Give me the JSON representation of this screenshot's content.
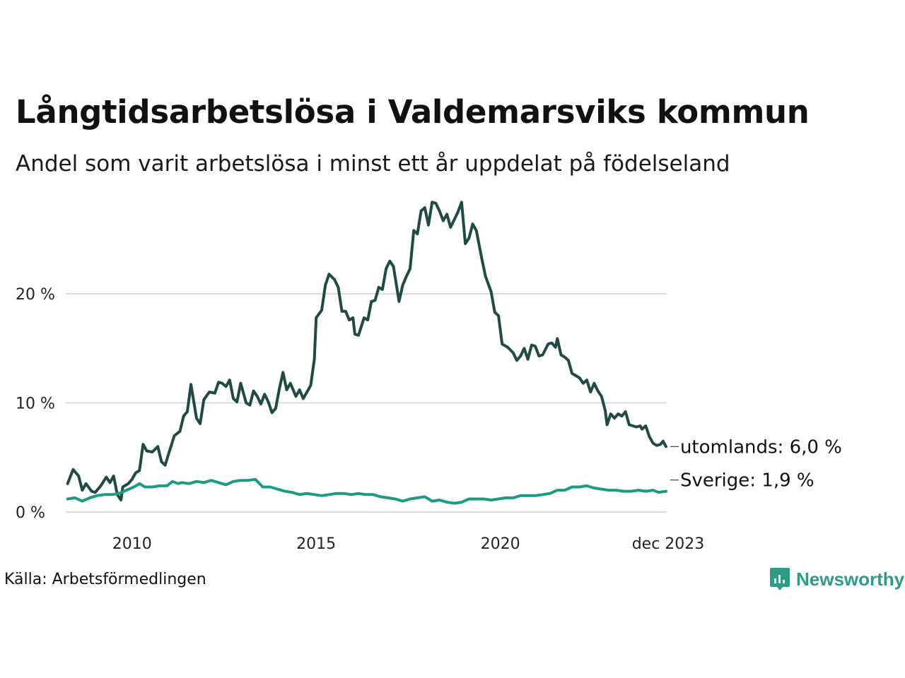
{
  "title": "Långtidsarbetslösa i Valdemarsviks kommun",
  "subtitle": "Andel som varit arbetslösa i minst ett år uppdelat på födelseland",
  "source": "Källa: Arbetsförmedlingen",
  "brand": "Newsworthy",
  "colors": {
    "utomlands": "#1f4b44",
    "sverige": "#1b9a86",
    "grid": "#dcdcdc",
    "brand": "#2e9b86"
  },
  "chart_data": {
    "type": "line",
    "title": "Långtidsarbetslösa i Valdemarsviks kommun",
    "xlabel": "",
    "ylabel": "",
    "ylim": [
      0,
      29
    ],
    "xlim": [
      2008.2,
      2023.95
    ],
    "y_ticks": [
      {
        "value": 0,
        "label": "0 %"
      },
      {
        "value": 10,
        "label": "10 %"
      },
      {
        "value": 20,
        "label": "20 %"
      }
    ],
    "x_ticks": [
      {
        "value": 2010,
        "label": "2010"
      },
      {
        "value": 2015,
        "label": "2015"
      },
      {
        "value": 2020,
        "label": "2020"
      },
      {
        "value": 2023.92,
        "label": "dec 2023"
      }
    ],
    "series": [
      {
        "name": "utomlands",
        "label": "utomlands: 6,0 %",
        "last_value": 6.0,
        "points": [
          [
            2008.25,
            2.6
          ],
          [
            2008.4,
            3.9
          ],
          [
            2008.55,
            3.3
          ],
          [
            2008.65,
            2.0
          ],
          [
            2008.75,
            2.6
          ],
          [
            2008.9,
            1.9
          ],
          [
            2009.0,
            1.8
          ],
          [
            2009.15,
            2.4
          ],
          [
            2009.3,
            3.2
          ],
          [
            2009.4,
            2.7
          ],
          [
            2009.5,
            3.3
          ],
          [
            2009.6,
            1.6
          ],
          [
            2009.7,
            1.1
          ],
          [
            2009.75,
            2.3
          ],
          [
            2009.9,
            2.6
          ],
          [
            2010.0,
            3.0
          ],
          [
            2010.1,
            3.6
          ],
          [
            2010.2,
            3.8
          ],
          [
            2010.3,
            6.2
          ],
          [
            2010.4,
            5.6
          ],
          [
            2010.55,
            5.5
          ],
          [
            2010.7,
            6.0
          ],
          [
            2010.8,
            4.6
          ],
          [
            2010.9,
            4.3
          ],
          [
            2011.0,
            5.4
          ],
          [
            2011.15,
            7.0
          ],
          [
            2011.3,
            7.4
          ],
          [
            2011.4,
            8.8
          ],
          [
            2011.5,
            9.2
          ],
          [
            2011.6,
            11.7
          ],
          [
            2011.75,
            8.6
          ],
          [
            2011.85,
            8.1
          ],
          [
            2011.95,
            10.3
          ],
          [
            2012.1,
            11.0
          ],
          [
            2012.25,
            10.9
          ],
          [
            2012.35,
            11.9
          ],
          [
            2012.45,
            11.8
          ],
          [
            2012.55,
            11.5
          ],
          [
            2012.65,
            12.1
          ],
          [
            2012.75,
            10.4
          ],
          [
            2012.85,
            10.1
          ],
          [
            2012.95,
            11.8
          ],
          [
            2013.1,
            10.0
          ],
          [
            2013.2,
            9.8
          ],
          [
            2013.3,
            11.1
          ],
          [
            2013.4,
            10.6
          ],
          [
            2013.5,
            9.9
          ],
          [
            2013.6,
            10.8
          ],
          [
            2013.7,
            10.1
          ],
          [
            2013.8,
            9.1
          ],
          [
            2013.9,
            9.5
          ],
          [
            2014.0,
            11.3
          ],
          [
            2014.1,
            12.8
          ],
          [
            2014.2,
            11.2
          ],
          [
            2014.3,
            11.8
          ],
          [
            2014.45,
            10.6
          ],
          [
            2014.55,
            11.2
          ],
          [
            2014.65,
            10.4
          ],
          [
            2014.75,
            11.0
          ],
          [
            2014.85,
            11.6
          ],
          [
            2014.95,
            14.0
          ],
          [
            2015.0,
            17.8
          ],
          [
            2015.15,
            18.5
          ],
          [
            2015.25,
            20.8
          ],
          [
            2015.35,
            21.8
          ],
          [
            2015.5,
            21.3
          ],
          [
            2015.6,
            20.6
          ],
          [
            2015.7,
            18.4
          ],
          [
            2015.8,
            18.4
          ],
          [
            2015.9,
            17.6
          ],
          [
            2016.0,
            17.8
          ],
          [
            2016.05,
            16.3
          ],
          [
            2016.15,
            16.2
          ],
          [
            2016.3,
            17.8
          ],
          [
            2016.4,
            17.6
          ],
          [
            2016.5,
            19.3
          ],
          [
            2016.6,
            19.4
          ],
          [
            2016.7,
            20.6
          ],
          [
            2016.8,
            20.4
          ],
          [
            2016.9,
            22.3
          ],
          [
            2017.0,
            23.0
          ],
          [
            2017.1,
            22.5
          ],
          [
            2017.25,
            19.3
          ],
          [
            2017.35,
            20.8
          ],
          [
            2017.45,
            21.6
          ],
          [
            2017.55,
            22.3
          ],
          [
            2017.65,
            25.8
          ],
          [
            2017.75,
            25.5
          ],
          [
            2017.85,
            27.6
          ],
          [
            2017.95,
            27.9
          ],
          [
            2018.05,
            26.3
          ],
          [
            2018.15,
            28.4
          ],
          [
            2018.25,
            28.3
          ],
          [
            2018.35,
            27.6
          ],
          [
            2018.45,
            26.7
          ],
          [
            2018.55,
            27.3
          ],
          [
            2018.65,
            26.1
          ],
          [
            2018.75,
            26.8
          ],
          [
            2018.85,
            27.5
          ],
          [
            2018.95,
            28.4
          ],
          [
            2019.05,
            24.6
          ],
          [
            2019.15,
            25.1
          ],
          [
            2019.25,
            26.4
          ],
          [
            2019.35,
            25.8
          ],
          [
            2019.5,
            23.2
          ],
          [
            2019.6,
            21.6
          ],
          [
            2019.75,
            20.2
          ],
          [
            2019.85,
            18.3
          ],
          [
            2019.95,
            18.0
          ],
          [
            2020.05,
            15.4
          ],
          [
            2020.2,
            15.1
          ],
          [
            2020.35,
            14.6
          ],
          [
            2020.45,
            13.9
          ],
          [
            2020.55,
            14.3
          ],
          [
            2020.65,
            15.0
          ],
          [
            2020.75,
            14.0
          ],
          [
            2020.85,
            15.3
          ],
          [
            2020.95,
            15.2
          ],
          [
            2021.05,
            14.3
          ],
          [
            2021.15,
            14.4
          ],
          [
            2021.3,
            15.4
          ],
          [
            2021.4,
            15.5
          ],
          [
            2021.5,
            15.1
          ],
          [
            2021.55,
            15.9
          ],
          [
            2021.65,
            14.4
          ],
          [
            2021.75,
            14.2
          ],
          [
            2021.85,
            13.9
          ],
          [
            2021.95,
            12.7
          ],
          [
            2022.05,
            12.5
          ],
          [
            2022.15,
            12.3
          ],
          [
            2022.25,
            11.8
          ],
          [
            2022.35,
            12.1
          ],
          [
            2022.45,
            11.0
          ],
          [
            2022.55,
            11.8
          ],
          [
            2022.65,
            11.1
          ],
          [
            2022.75,
            10.6
          ],
          [
            2022.85,
            9.3
          ],
          [
            2022.9,
            8.0
          ],
          [
            2023.0,
            9.0
          ],
          [
            2023.1,
            8.6
          ],
          [
            2023.2,
            9.0
          ],
          [
            2023.3,
            8.8
          ],
          [
            2023.4,
            9.2
          ],
          [
            2023.5,
            8.0
          ],
          [
            2023.6,
            7.9
          ],
          [
            2023.7,
            7.8
          ],
          [
            2023.8,
            7.9
          ],
          [
            2023.85,
            7.6
          ],
          [
            2023.95,
            7.9
          ],
          [
            2024.05,
            6.9
          ],
          [
            2024.15,
            6.3
          ],
          [
            2024.25,
            6.1
          ],
          [
            2024.35,
            6.2
          ],
          [
            2024.42,
            6.5
          ],
          [
            2024.5,
            6.0
          ]
        ]
      },
      {
        "name": "Sverige",
        "label": "Sverige: 1,9 %",
        "last_value": 1.9,
        "points": [
          [
            2008.25,
            1.2
          ],
          [
            2008.45,
            1.3
          ],
          [
            2008.65,
            1.0
          ],
          [
            2008.85,
            1.3
          ],
          [
            2009.05,
            1.5
          ],
          [
            2009.25,
            1.6
          ],
          [
            2009.45,
            1.6
          ],
          [
            2009.65,
            1.7
          ],
          [
            2009.85,
            2.0
          ],
          [
            2010.05,
            2.3
          ],
          [
            2010.2,
            2.6
          ],
          [
            2010.35,
            2.3
          ],
          [
            2010.55,
            2.3
          ],
          [
            2010.75,
            2.4
          ],
          [
            2010.95,
            2.4
          ],
          [
            2011.1,
            2.8
          ],
          [
            2011.25,
            2.6
          ],
          [
            2011.35,
            2.7
          ],
          [
            2011.55,
            2.6
          ],
          [
            2011.75,
            2.8
          ],
          [
            2011.95,
            2.7
          ],
          [
            2012.15,
            2.9
          ],
          [
            2012.35,
            2.7
          ],
          [
            2012.55,
            2.5
          ],
          [
            2012.75,
            2.8
          ],
          [
            2012.95,
            2.9
          ],
          [
            2013.15,
            2.9
          ],
          [
            2013.35,
            3.0
          ],
          [
            2013.55,
            2.3
          ],
          [
            2013.75,
            2.3
          ],
          [
            2013.95,
            2.1
          ],
          [
            2014.15,
            1.9
          ],
          [
            2014.35,
            1.8
          ],
          [
            2014.55,
            1.6
          ],
          [
            2014.75,
            1.7
          ],
          [
            2014.95,
            1.6
          ],
          [
            2015.15,
            1.5
          ],
          [
            2015.35,
            1.6
          ],
          [
            2015.55,
            1.7
          ],
          [
            2015.75,
            1.7
          ],
          [
            2015.95,
            1.6
          ],
          [
            2016.15,
            1.7
          ],
          [
            2016.35,
            1.6
          ],
          [
            2016.55,
            1.6
          ],
          [
            2016.75,
            1.4
          ],
          [
            2016.95,
            1.3
          ],
          [
            2017.15,
            1.2
          ],
          [
            2017.35,
            1.0
          ],
          [
            2017.55,
            1.2
          ],
          [
            2017.75,
            1.3
          ],
          [
            2017.95,
            1.4
          ],
          [
            2018.15,
            1.0
          ],
          [
            2018.35,
            1.1
          ],
          [
            2018.55,
            0.9
          ],
          [
            2018.75,
            0.8
          ],
          [
            2018.95,
            0.9
          ],
          [
            2019.15,
            1.2
          ],
          [
            2019.35,
            1.2
          ],
          [
            2019.55,
            1.2
          ],
          [
            2019.75,
            1.1
          ],
          [
            2019.95,
            1.2
          ],
          [
            2020.15,
            1.3
          ],
          [
            2020.35,
            1.3
          ],
          [
            2020.55,
            1.5
          ],
          [
            2020.75,
            1.5
          ],
          [
            2020.95,
            1.5
          ],
          [
            2021.15,
            1.6
          ],
          [
            2021.35,
            1.7
          ],
          [
            2021.55,
            2.0
          ],
          [
            2021.75,
            2.0
          ],
          [
            2021.95,
            2.3
          ],
          [
            2022.15,
            2.3
          ],
          [
            2022.35,
            2.4
          ],
          [
            2022.55,
            2.2
          ],
          [
            2022.75,
            2.1
          ],
          [
            2022.95,
            2.0
          ],
          [
            2023.15,
            2.0
          ],
          [
            2023.35,
            1.9
          ],
          [
            2023.55,
            1.9
          ],
          [
            2023.75,
            2.0
          ],
          [
            2023.95,
            1.9
          ],
          [
            2024.15,
            2.0
          ],
          [
            2024.3,
            1.8
          ],
          [
            2024.5,
            1.9
          ]
        ]
      }
    ]
  }
}
